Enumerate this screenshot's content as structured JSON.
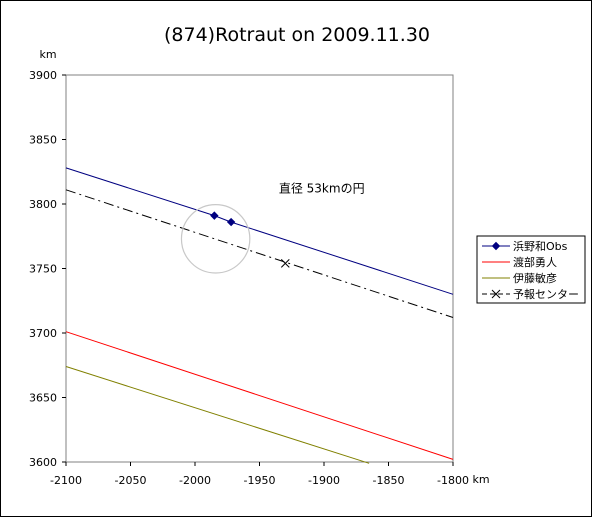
{
  "chart_data": {
    "type": "line",
    "title": "(874)Rotraut on 2009.11.30",
    "xunit": "km",
    "yunit": "km",
    "xlim": [
      -2100,
      -1800
    ],
    "ylim": [
      3600,
      3900
    ],
    "xticks": [
      -2100,
      -2050,
      -2000,
      -1950,
      -1900,
      -1850,
      -1800
    ],
    "yticks": [
      3600,
      3650,
      3700,
      3750,
      3800,
      3850,
      3900
    ],
    "grid": false,
    "legend_position": "right",
    "annotation": {
      "text": "直径 53kmの円",
      "anchor": {
        "x": -1935,
        "y": 3809
      },
      "circle": {
        "cx": -1984,
        "cy": 3773,
        "r": 26.5,
        "color": "#c8c8c8"
      }
    },
    "series": [
      {
        "name": "浜野和Obs",
        "color": "#000080",
        "style": "solid",
        "points": [
          [
            -2100,
            3828
          ],
          [
            -1985,
            3791
          ],
          [
            -1972,
            3786
          ],
          [
            -1800,
            3730
          ]
        ],
        "markers": [
          [
            -1985,
            3791
          ],
          [
            -1972,
            3786
          ]
        ],
        "marker": "diamond"
      },
      {
        "name": "渡部勇人",
        "color": "#ff0000",
        "style": "solid",
        "points": [
          [
            -2100,
            3701
          ],
          [
            -1800,
            3602
          ]
        ]
      },
      {
        "name": "伊藤敏彦",
        "color": "#808000",
        "style": "solid",
        "points": [
          [
            -2100,
            3674
          ],
          [
            -1865,
            3599
          ]
        ]
      },
      {
        "name": "予報センター",
        "color": "#000000",
        "style": "dashdot",
        "points": [
          [
            -2100,
            3811
          ],
          [
            -1800,
            3712
          ]
        ],
        "markers": [
          [
            -1930,
            3754
          ]
        ],
        "marker": "x"
      }
    ]
  }
}
